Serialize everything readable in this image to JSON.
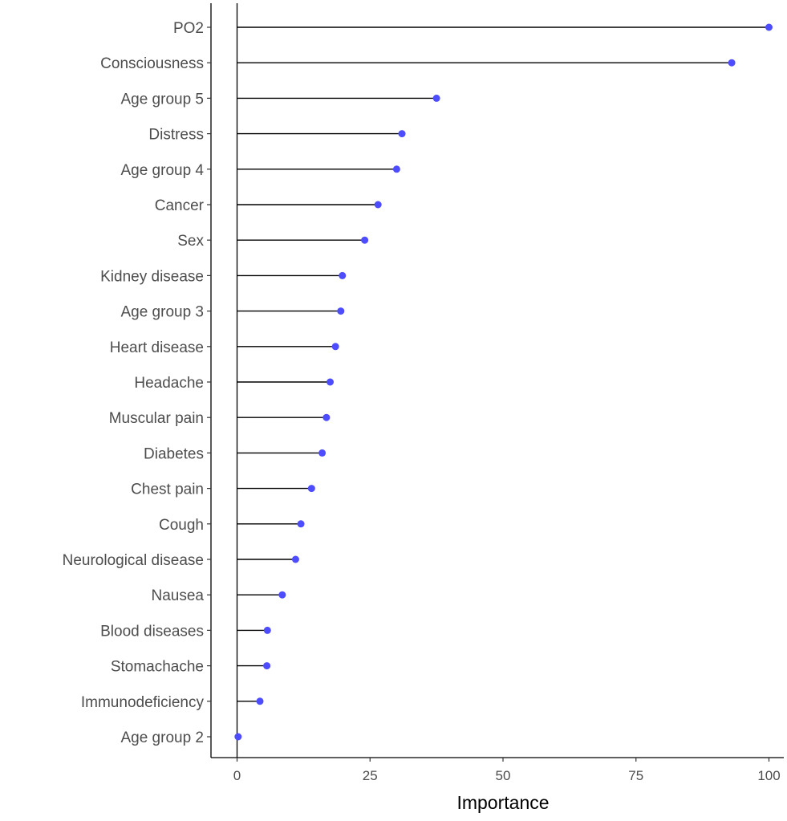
{
  "chart_data": {
    "type": "lollipop",
    "categories": [
      "PO2",
      "Consciousness",
      "Age group 5",
      "Distress",
      "Age group 4",
      "Cancer",
      "Sex",
      "Kidney disease",
      "Age group 3",
      "Heart disease",
      "Headache",
      "Muscular pain",
      "Diabetes",
      "Chest pain",
      "Cough",
      "Neurological disease",
      "Nausea",
      "Blood diseases",
      "Stomachache",
      "Immunodeficiency",
      "Age group 2"
    ],
    "values": [
      100,
      93,
      37.5,
      31,
      30,
      26.5,
      24,
      19.8,
      19.5,
      18.5,
      17.5,
      16.8,
      16,
      14,
      12,
      11,
      8.5,
      5.7,
      5.6,
      4.3,
      0.2
    ],
    "xlabel": "Importance",
    "ylabel": "",
    "xlim": [
      -5,
      103
    ],
    "xticks": [
      0,
      25,
      50,
      75,
      100
    ],
    "xtick_labels": [
      "0",
      "25",
      "50",
      "75",
      "100"
    ],
    "grid": false,
    "point_color": "#4d4dff",
    "stem_color": "#000000",
    "reference_line_at": 0
  }
}
